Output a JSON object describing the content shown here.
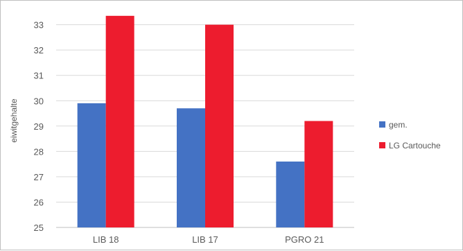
{
  "chart_data": {
    "type": "bar",
    "title": "",
    "xlabel": "",
    "ylabel": "eiwitgehalte",
    "ylim": [
      25,
      33.5
    ],
    "yticks": [
      25,
      26,
      27,
      28,
      29,
      30,
      31,
      32,
      33
    ],
    "grid": true,
    "legend_position": "right",
    "categories": [
      "LIB 18",
      "LIB 17",
      "PGRO 21"
    ],
    "series": [
      {
        "name": "gem.",
        "color": "#4472c4",
        "values": [
          29.9,
          29.7,
          27.6
        ]
      },
      {
        "name": "LG Cartouche",
        "color": "#ed1c2e",
        "values": [
          33.35,
          33.0,
          29.2
        ]
      }
    ]
  }
}
